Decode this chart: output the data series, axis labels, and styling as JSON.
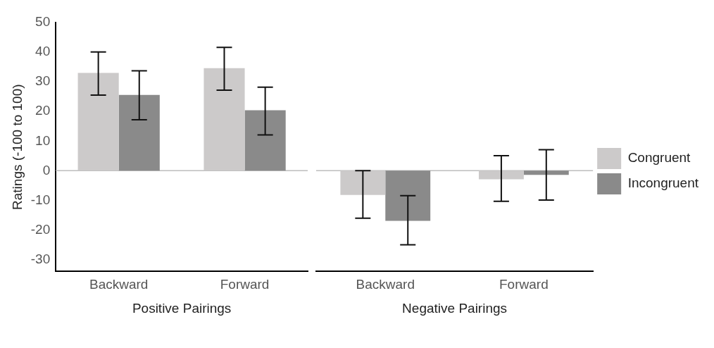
{
  "chart_data": [
    {
      "type": "bar",
      "xlabel": "Positive Pairings",
      "ylabel": "Ratings (-100 to 100)",
      "categories": [
        "Backward",
        "Forward"
      ],
      "series": [
        {
          "color": "#cccaca",
          "values": [
            33.0,
            34.6
          ],
          "errors": [
            [
              25.5,
              40.1
            ],
            [
              27.2,
              41.6
            ]
          ]
        },
        {
          "color": "#8a8a8a",
          "values": [
            25.6,
            20.4
          ],
          "errors": [
            [
              17.2,
              33.7
            ],
            [
              12.1,
              28.2
            ]
          ]
        }
      ],
      "ylim": [
        -34,
        50
      ],
      "yticks": [
        -30,
        -20,
        -10,
        0,
        10,
        20,
        30,
        40,
        50
      ],
      "grid": false,
      "legend": false,
      "ref_lines": [
        {
          "axis": "y",
          "value": 0,
          "color": "#bdbdbd"
        }
      ]
    },
    {
      "type": "bar",
      "xlabel": "Negative Pairings",
      "categories": [
        "Backward",
        "Forward"
      ],
      "series": [
        {
          "name": "Congruent",
          "color": "#cccaca",
          "values": [
            -8.2,
            -2.9
          ],
          "errors": [
            [
              -16.0,
              0
            ],
            [
              -10.3,
              5.1
            ]
          ]
        },
        {
          "name": "Incongruent",
          "color": "#8a8a8a",
          "values": [
            -16.9,
            -1.4
          ],
          "errors": [
            [
              -25.0,
              -8.4
            ],
            [
              -9.9,
              7.1
            ]
          ]
        }
      ],
      "ylim": [
        -34,
        50
      ],
      "yticks": [
        -30,
        -20,
        -10,
        0,
        10,
        20,
        30,
        40,
        50
      ],
      "tick_labels": "x",
      "grid": false,
      "legend": "right",
      "ref_lines": [
        {
          "axis": "y",
          "value": 0,
          "color": "#bdbdbd"
        }
      ]
    }
  ]
}
